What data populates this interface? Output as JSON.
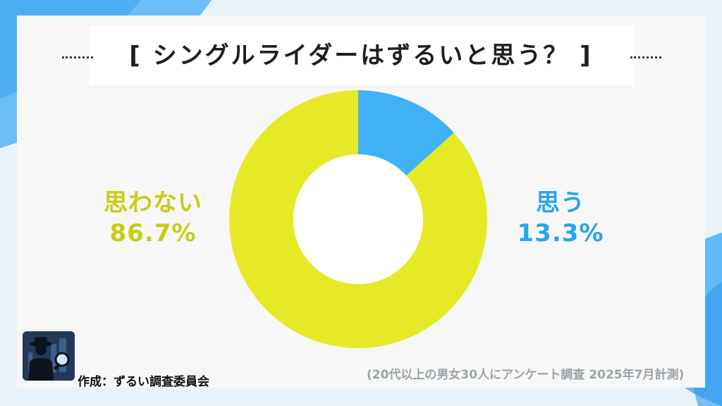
{
  "title": "[ シングルライダーはずるいと思う？ ]",
  "colors": {
    "no": "#e6ea26",
    "yes": "#3fb1f5",
    "no_label": "#c9cc14",
    "yes_label": "#2ba3ee",
    "accent_bg": "#8fc8f5"
  },
  "chart_data": {
    "type": "pie",
    "style": "donut",
    "slices": [
      {
        "label": "思う",
        "value": 13.3,
        "value_text": "13.3%",
        "color": "#3fb1f5"
      },
      {
        "label": "思わない",
        "value": 86.7,
        "value_text": "86.7%",
        "color": "#e6ea26"
      }
    ]
  },
  "footer": {
    "credit": "作成：ずるい調査委員会",
    "note": "(20代以上の男女30人にアンケート調査 2025年7月計測)"
  },
  "logo_icon": "detective-magnifier-icon"
}
